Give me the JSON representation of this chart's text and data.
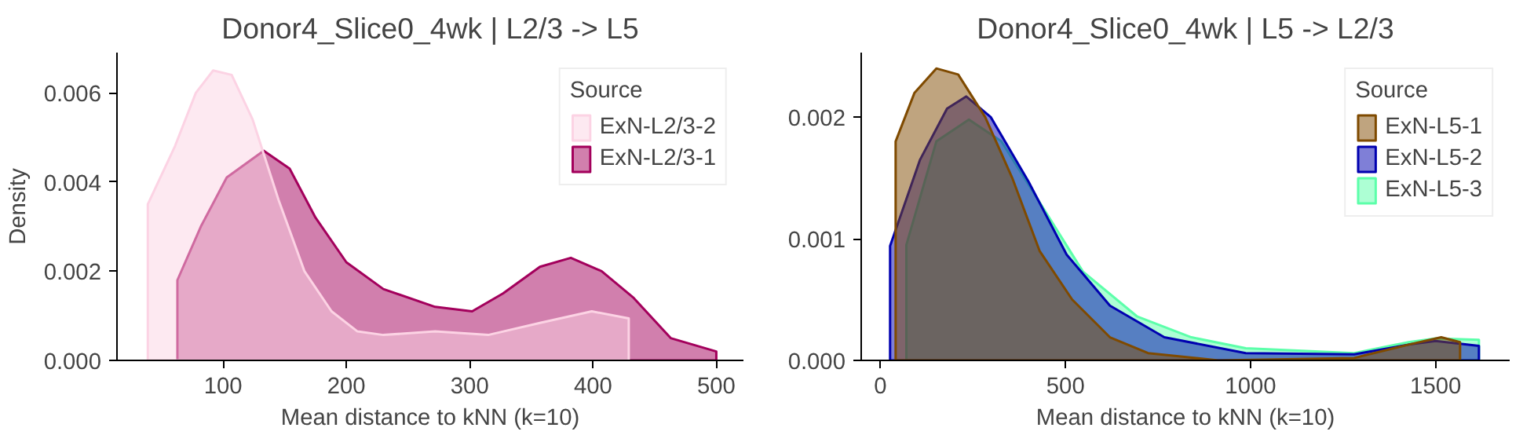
{
  "chart_data": [
    {
      "type": "area",
      "title": "Donor4_Slice0_4wk | L2/3 -> L5",
      "xlabel": "Mean distance to kNN (k=10)",
      "ylabel": "Density",
      "legend_title": "Source",
      "legend": "top right",
      "grid": false,
      "xlim": [
        14,
        522
      ],
      "ylim": [
        0,
        0.0069
      ],
      "xticks": [
        100,
        200,
        300,
        400,
        500
      ],
      "yticks": [
        {
          "value": 0,
          "label": "0.000"
        },
        {
          "value": 0.002,
          "label": "0.002"
        },
        {
          "value": 0.004,
          "label": "0.004"
        },
        {
          "value": 0.006,
          "label": "0.006"
        }
      ],
      "series": [
        {
          "name": "ExN-L2/3-2",
          "color": "#fcd3e4",
          "x": [
            39,
            39,
            61,
            78,
            92,
            107,
            124,
            145,
            166,
            188,
            209,
            230,
            272,
            315,
            357,
            399,
            429,
            429
          ],
          "values": [
            0,
            0.0035,
            0.0048,
            0.006,
            0.0065,
            0.0064,
            0.0054,
            0.0036,
            0.002,
            0.0011,
            0.00065,
            0.00057,
            0.00065,
            0.00057,
            0.00084,
            0.0011,
            0.00094,
            0
          ]
        },
        {
          "name": "ExN-L2/3-1",
          "color": "#a3005c",
          "x": [
            63,
            63,
            82,
            103,
            133,
            154,
            175,
            200,
            230,
            272,
            302,
            327,
            357,
            382,
            407,
            433,
            463,
            500,
            500
          ],
          "values": [
            0,
            0.0018,
            0.003,
            0.0041,
            0.0047,
            0.0043,
            0.0032,
            0.0022,
            0.0016,
            0.0012,
            0.0011,
            0.0015,
            0.0021,
            0.0023,
            0.002,
            0.0014,
            0.0005,
            0.0002,
            0
          ]
        }
      ]
    },
    {
      "type": "area",
      "title": "Donor4_Slice0_4wk | L5 -> L2/3",
      "xlabel": "Mean distance to kNN (k=10)",
      "legend_title": "Source",
      "legend": "top right",
      "grid": false,
      "xlim": [
        -52,
        1700
      ],
      "ylim": [
        0,
        0.00253
      ],
      "xticks": [
        0,
        500,
        1000,
        1500
      ],
      "yticks": [
        {
          "value": 0,
          "label": "0.000"
        },
        {
          "value": 0.001,
          "label": "0.001"
        },
        {
          "value": 0.002,
          "label": "0.002"
        }
      ],
      "series": [
        {
          "name": "ExN-L5-1",
          "color": "#7f4a00",
          "x": [
            41,
            41,
            92,
            151,
            210,
            283,
            356,
            430,
            518,
            620,
            723,
            913,
            1280,
            1427,
            1515,
            1566,
            1566
          ],
          "values": [
            0,
            0.0018,
            0.0022,
            0.0024,
            0.00235,
            0.002,
            0.0015,
            0.0009,
            0.0005,
            0.00019,
            6e-05,
            0,
            2e-05,
            0.00013,
            0.00019,
            0.00015,
            0
          ]
        },
        {
          "name": "ExN-L5-2",
          "color": "#0000b0",
          "x": [
            26,
            26,
            107,
            180,
            232,
            298,
            400,
            503,
            620,
            767,
            987,
            1280,
            1427,
            1500,
            1617,
            1617
          ],
          "values": [
            0,
            0.00094,
            0.00165,
            0.00207,
            0.00217,
            0.002,
            0.00147,
            0.00087,
            0.00045,
            0.00019,
            6e-05,
            5e-05,
            0.00013,
            0.00016,
            0.00012,
            0
          ]
        },
        {
          "name": "ExN-L5-3",
          "color": "#5cffaa",
          "x": [
            70,
            70,
            151,
            239,
            327,
            430,
            547,
            694,
            840,
            987,
            1280,
            1427,
            1500,
            1617,
            1617
          ],
          "values": [
            0,
            0.00095,
            0.0018,
            0.00198,
            0.0018,
            0.0013,
            0.00073,
            0.00036,
            0.00019,
            0.0001,
            6e-05,
            0.00015,
            0.00018,
            0.00017,
            0
          ]
        }
      ]
    }
  ]
}
